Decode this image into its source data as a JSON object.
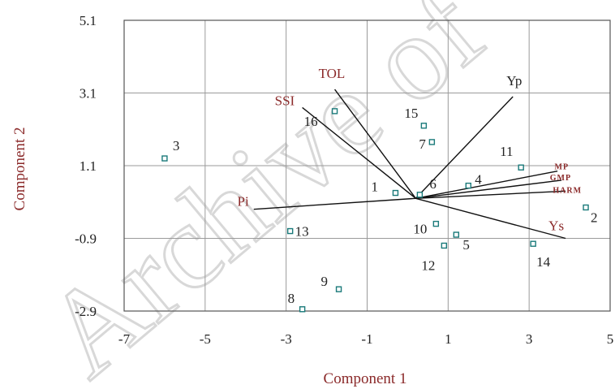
{
  "chart_data": {
    "type": "scatter",
    "subtype": "pca-biplot",
    "xlabel": "Component 1",
    "ylabel": "Component 2",
    "xlim": [
      -7,
      5
    ],
    "ylim": [
      -2.9,
      5.1
    ],
    "xticks": [
      -7,
      -5,
      -3,
      -1,
      1,
      3,
      5
    ],
    "yticks": [
      -2.9,
      -0.9,
      1.1,
      3.1,
      5.1
    ],
    "tick_labels_x": [
      "-7",
      "-5",
      "-3",
      "-1",
      "1",
      "3",
      "5"
    ],
    "tick_labels_y": [
      "-2.9",
      "-0.9",
      "1.1",
      "3.1",
      "5.1"
    ],
    "grid": true,
    "vector_origin": [
      0.2,
      0.2
    ],
    "points": [
      {
        "label": "1",
        "x": -0.3,
        "y": 0.35
      },
      {
        "label": "2",
        "x": 4.4,
        "y": -0.05
      },
      {
        "label": "3",
        "x": -6.0,
        "y": 1.3
      },
      {
        "label": "4",
        "x": 1.5,
        "y": 0.55
      },
      {
        "label": "5",
        "x": 1.2,
        "y": -0.8
      },
      {
        "label": "6",
        "x": 0.3,
        "y": 0.3
      },
      {
        "label": "7",
        "x": 0.6,
        "y": 1.75
      },
      {
        "label": "8",
        "x": -2.6,
        "y": -2.85
      },
      {
        "label": "9",
        "x": -1.7,
        "y": -2.3
      },
      {
        "label": "10",
        "x": 0.7,
        "y": -0.5
      },
      {
        "label": "11",
        "x": 2.8,
        "y": 1.05
      },
      {
        "label": "12",
        "x": 0.9,
        "y": -1.1
      },
      {
        "label": "13",
        "x": -2.9,
        "y": -0.7
      },
      {
        "label": "14",
        "x": 3.1,
        "y": -1.05
      },
      {
        "label": "15",
        "x": 0.4,
        "y": 2.2
      },
      {
        "label": "16",
        "x": -1.8,
        "y": 2.6
      }
    ],
    "vectors": [
      {
        "label": "Yp",
        "x": 2.6,
        "y": 3.0
      },
      {
        "label": "TOL",
        "x": -1.8,
        "y": 3.2
      },
      {
        "label": "SSI",
        "x": -2.6,
        "y": 2.7
      },
      {
        "label": "Pi",
        "x": -3.8,
        "y": -0.1
      },
      {
        "label": "Ys",
        "x": 3.9,
        "y": -0.9
      },
      {
        "label": "MP",
        "x": 3.7,
        "y": 0.95
      },
      {
        "label": "GMP",
        "x": 3.8,
        "y": 0.7
      },
      {
        "label": "HARM",
        "x": 3.9,
        "y": 0.4
      }
    ]
  },
  "watermark": "Archive of"
}
